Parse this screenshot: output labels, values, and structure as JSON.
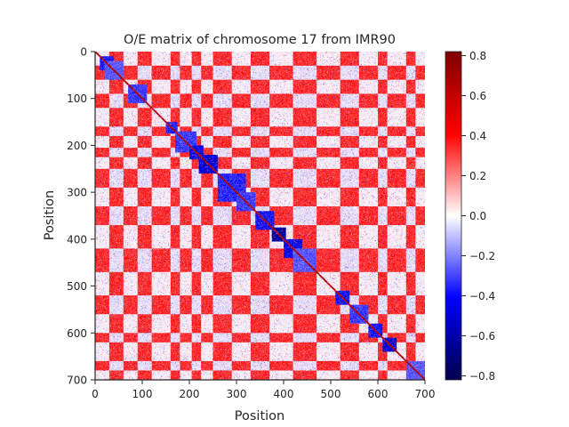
{
  "chart_data": {
    "type": "heatmap",
    "title": "O/E matrix of chromosome 17 from IMR90",
    "xlabel": "Position",
    "ylabel": "Position",
    "xlim": [
      0,
      700
    ],
    "ylim": [
      0,
      700
    ],
    "y_inverted": true,
    "x_ticks": [
      "0",
      "100",
      "200",
      "300",
      "400",
      "500",
      "600",
      "700"
    ],
    "y_ticks": [
      "0",
      "100",
      "200",
      "300",
      "400",
      "500",
      "600",
      "700"
    ],
    "colorbar": {
      "colormap": "seismic",
      "vmin": -0.82,
      "vmax": 0.82,
      "ticks": [
        "−0.8",
        "−0.6",
        "−0.4",
        "−0.2",
        "0.0",
        "0.2",
        "0.4",
        "0.6",
        "0.8"
      ],
      "tick_values": [
        -0.8,
        -0.6,
        -0.4,
        -0.2,
        0.0,
        0.2,
        0.4,
        0.6,
        0.8
      ]
    },
    "compartments": {
      "A_bins": [
        [
          0,
          30
        ],
        [
          60,
          90
        ],
        [
          120,
          160
        ],
        [
          180,
          205
        ],
        [
          225,
          250
        ],
        [
          290,
          330
        ],
        [
          370,
          420
        ],
        [
          470,
          520
        ],
        [
          560,
          600
        ],
        [
          620,
          660
        ],
        [
          680,
          700
        ]
      ],
      "blue_domains": [
        {
          "start": 10,
          "end": 40,
          "value": -0.45
        },
        {
          "start": 20,
          "end": 60,
          "value": -0.3
        },
        {
          "start": 70,
          "end": 110,
          "value": -0.35
        },
        {
          "start": 150,
          "end": 175,
          "value": -0.4
        },
        {
          "start": 170,
          "end": 215,
          "value": -0.35
        },
        {
          "start": 200,
          "end": 230,
          "value": -0.5
        },
        {
          "start": 220,
          "end": 260,
          "value": -0.55
        },
        {
          "start": 260,
          "end": 320,
          "value": -0.4
        },
        {
          "start": 300,
          "end": 340,
          "value": -0.35
        },
        {
          "start": 340,
          "end": 380,
          "value": -0.45
        },
        {
          "start": 375,
          "end": 405,
          "value": -0.7
        },
        {
          "start": 400,
          "end": 440,
          "value": -0.5
        },
        {
          "start": 420,
          "end": 470,
          "value": -0.3
        },
        {
          "start": 510,
          "end": 540,
          "value": -0.45
        },
        {
          "start": 540,
          "end": 580,
          "value": -0.35
        },
        {
          "start": 580,
          "end": 610,
          "value": -0.45
        },
        {
          "start": 610,
          "end": 640,
          "value": -0.55
        },
        {
          "start": 660,
          "end": 700,
          "value": -0.3
        }
      ]
    }
  }
}
